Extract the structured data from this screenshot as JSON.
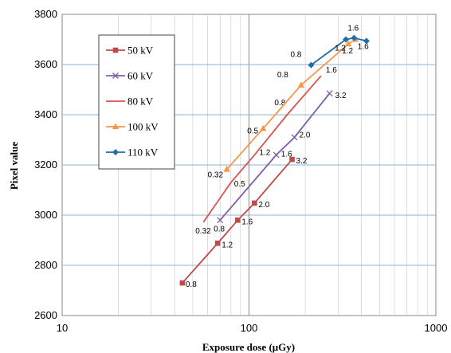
{
  "chart_data": {
    "type": "line",
    "xlabel": "Exposure dose (μGy)",
    "ylabel": "Pixel value",
    "xscale": "log",
    "xlim": [
      10,
      1000
    ],
    "ylim": [
      2600,
      3800
    ],
    "x_ticks": [
      "10",
      "100",
      "1000"
    ],
    "y_ticks": [
      "2600",
      "2800",
      "3000",
      "3200",
      "3400",
      "3600",
      "3800"
    ],
    "grid": true,
    "legend": "top-left",
    "series": [
      {
        "name": "50 kV",
        "color": "#be4b48",
        "marker": "square",
        "x": [
          44,
          68,
          87,
          107,
          170
        ],
        "y": [
          2730,
          2888,
          2980,
          3048,
          3222
        ],
        "labels": [
          "0.8",
          "1.2",
          "1.6",
          "2.0",
          "3.2"
        ]
      },
      {
        "name": "60 kV",
        "color": "#7e5ea6",
        "marker": "x",
        "x": [
          70,
          140,
          175,
          270
        ],
        "y": [
          2980,
          3240,
          3310,
          3485
        ],
        "labels": [
          "0.8",
          "1.6",
          "2.0",
          "3.2"
        ]
      },
      {
        "name": "80 kV",
        "color": "#d9534f",
        "marker": "none",
        "x": [
          57,
          80,
          107,
          160,
          243
        ],
        "y": [
          2972,
          3130,
          3240,
          3400,
          3555
        ],
        "labels": [
          "0.32",
          "0.5",
          "1.2",
          "0.8",
          "1.6"
        ]
      },
      {
        "name": "100 kV",
        "color": "#f79646",
        "marker": "triangle",
        "x": [
          76,
          119,
          190,
          340,
          370
        ],
        "y": [
          3182,
          3345,
          3518,
          3682,
          3700
        ],
        "labels": [
          "0.32",
          "0.5",
          "0.8",
          "1.2",
          "1.6"
        ]
      },
      {
        "name": "110 kV",
        "color": "#1f6ea8",
        "marker": "diamond",
        "x": [
          215,
          330,
          365,
          425
        ],
        "y": [
          3598,
          3700,
          3706,
          3694
        ],
        "labels": [
          "0.8",
          "1.2",
          "1.6",
          ""
        ]
      }
    ]
  }
}
